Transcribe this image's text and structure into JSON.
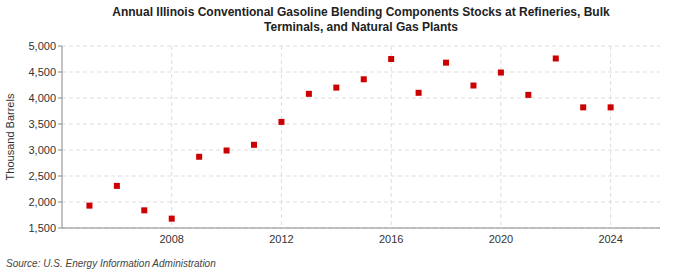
{
  "chart_data": {
    "type": "scatter",
    "title": "Annual Illinois Conventional Gasoline Blending Components Stocks at Refineries, Bulk\nTerminals, and Natural Gas Plants",
    "y_label": "Thousand Barrels",
    "source": "Source: U.S. Energy Information Administration",
    "x": [
      2005,
      2006,
      2007,
      2008,
      2009,
      2010,
      2011,
      2012,
      2013,
      2014,
      2015,
      2016,
      2017,
      2018,
      2019,
      2020,
      2021,
      2022,
      2023,
      2024
    ],
    "values": [
      1930,
      2310,
      1840,
      1680,
      2870,
      2990,
      3100,
      3540,
      4080,
      4200,
      4360,
      4750,
      4100,
      4680,
      4240,
      4490,
      4060,
      4760,
      3820,
      3820
    ],
    "color": "#cc0000",
    "marker": "square",
    "xlim": [
      2004.0,
      2025.8
    ],
    "xticks": [
      2008,
      2012,
      2016,
      2020,
      2024
    ],
    "ylim": [
      1500,
      5000
    ],
    "yticks": [
      {
        "value": 1500,
        "label": "1,500"
      },
      {
        "value": 2000,
        "label": "2,000"
      },
      {
        "value": 2500,
        "label": "2,500"
      },
      {
        "value": 3000,
        "label": "3,000"
      },
      {
        "value": 3500,
        "label": "3,500"
      },
      {
        "value": 4000,
        "label": "4,000"
      },
      {
        "value": 4500,
        "label": "4,500"
      },
      {
        "value": 5000,
        "label": "5,000"
      }
    ],
    "grid": true
  }
}
